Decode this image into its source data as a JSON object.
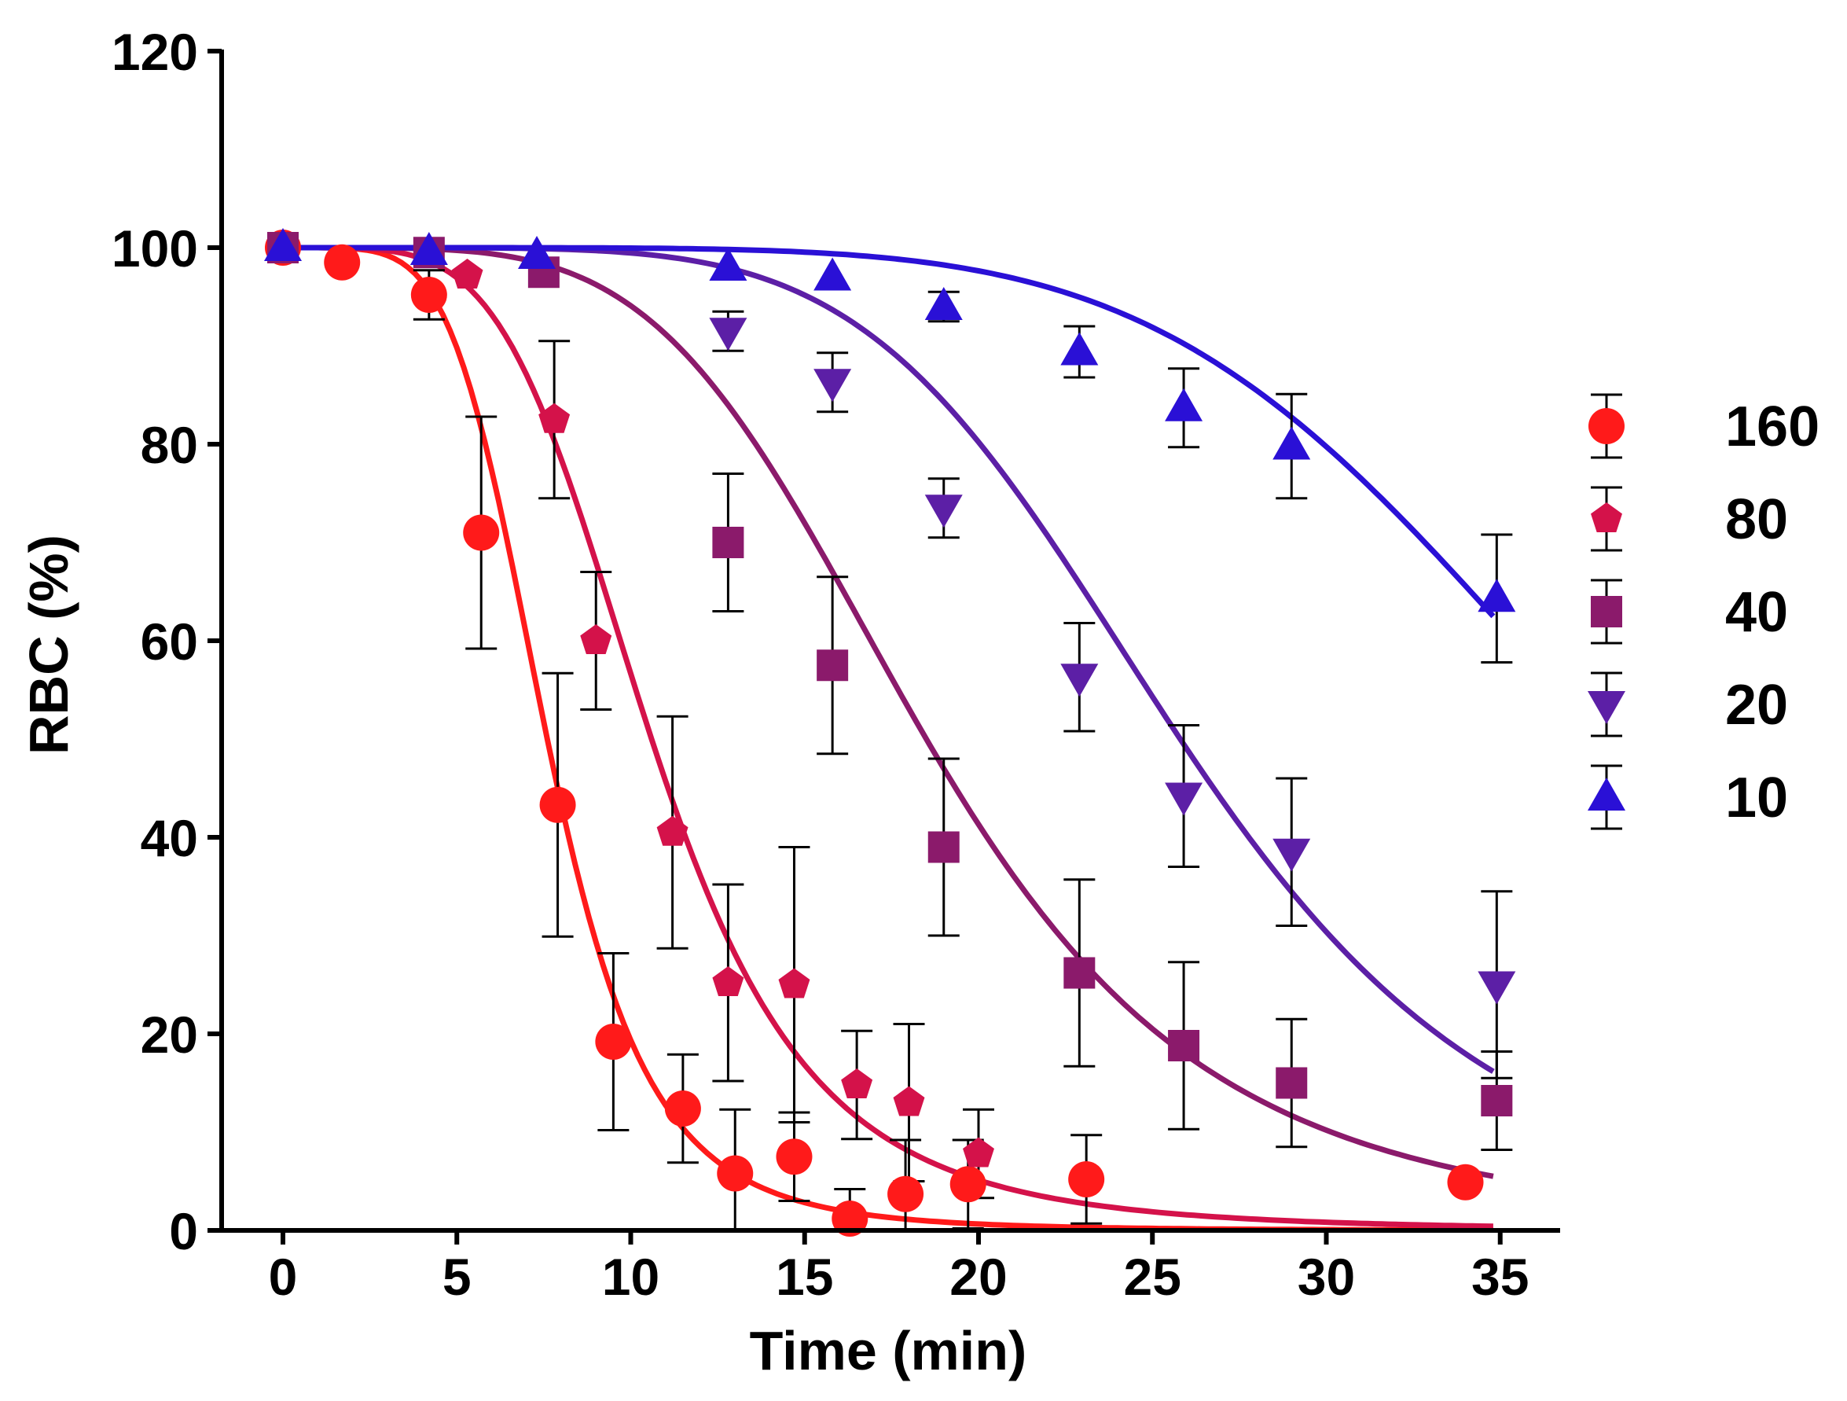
{
  "chart_data": {
    "type": "scatter",
    "title": "",
    "xlabel": "Time (min)",
    "ylabel": "RBC (%)",
    "xlim": [
      -2,
      37
    ],
    "ylim": [
      0,
      120
    ],
    "xticks": [
      0,
      5,
      10,
      15,
      20,
      25,
      30,
      35
    ],
    "yticks": [
      0,
      20,
      40,
      60,
      80,
      100,
      120
    ],
    "grid": false,
    "legend_position": "right",
    "series": [
      {
        "name": "160",
        "color": "#ff1a1a",
        "marker": "circle",
        "fit": {
          "t50": 7.6,
          "slope": 5.2
        },
        "x": [
          0,
          1.7,
          4.2,
          5.7,
          7.9,
          9.5,
          11.5,
          13,
          14.7,
          16.3,
          17.9,
          19.7,
          23.1,
          34
        ],
        "y": [
          100,
          98.5,
          95.2,
          71,
          43.3,
          19.2,
          12.4,
          5.8,
          7.5,
          1.2,
          3.7,
          4.7,
          5.2,
          4.9
        ],
        "err": [
          0,
          0,
          2.5,
          11.8,
          13.4,
          9,
          5.5,
          6.5,
          4.5,
          3,
          5.5,
          4.5,
          4.5,
          0
        ]
      },
      {
        "name": "80",
        "color": "#d4124a",
        "marker": "pentagon",
        "fit": {
          "t50": 10.6,
          "slope": 4.6
        },
        "x": [
          5.3,
          7.8,
          9,
          11.2,
          12.8,
          14.7,
          16.5,
          18,
          20
        ],
        "y": [
          97.2,
          82.5,
          60,
          40.5,
          25.2,
          25,
          14.8,
          13,
          7.8
        ],
        "err": [
          0,
          8,
          7,
          11.8,
          10,
          14,
          5.5,
          8,
          4.5
        ]
      },
      {
        "name": "40",
        "color": "#8b1a6b",
        "marker": "square",
        "fit": {
          "t50": 18.5,
          "slope": 4.5
        },
        "x": [
          0,
          4.2,
          7.5,
          12.8,
          15.8,
          19,
          22.9,
          25.9,
          29,
          34.9
        ],
        "y": [
          100,
          99.5,
          97.5,
          70,
          57.5,
          39,
          26.2,
          18.8,
          15,
          13.2
        ],
        "err": [
          0,
          0,
          0,
          7,
          9,
          9,
          9.5,
          8.5,
          6.5,
          5
        ]
      },
      {
        "name": "20",
        "color": "#5c1fa6",
        "marker": "triangle-down",
        "fit": {
          "t50": 25.8,
          "slope": 5.5
        },
        "x": [
          12.8,
          15.8,
          19,
          22.9,
          25.9,
          29,
          34.9
        ],
        "y": [
          91.5,
          86.3,
          73.5,
          56.3,
          44.2,
          38.5,
          25
        ],
        "err": [
          2,
          3,
          3,
          5.5,
          7.2,
          7.5,
          9.5
        ]
      },
      {
        "name": "10",
        "color": "#2a10d6",
        "marker": "triangle-up",
        "fit": {
          "t50": 38,
          "slope": 5.8
        },
        "x": [
          0,
          4.2,
          7.3,
          12.8,
          15.8,
          19,
          22.9,
          25.9,
          29,
          34.9
        ],
        "y": [
          100,
          99.6,
          99.2,
          98,
          97,
          94,
          89.4,
          83.7,
          79.8,
          64.3
        ],
        "err": [
          0,
          0,
          0,
          0,
          0,
          1.5,
          2.6,
          4,
          5.3,
          6.5
        ]
      }
    ]
  }
}
